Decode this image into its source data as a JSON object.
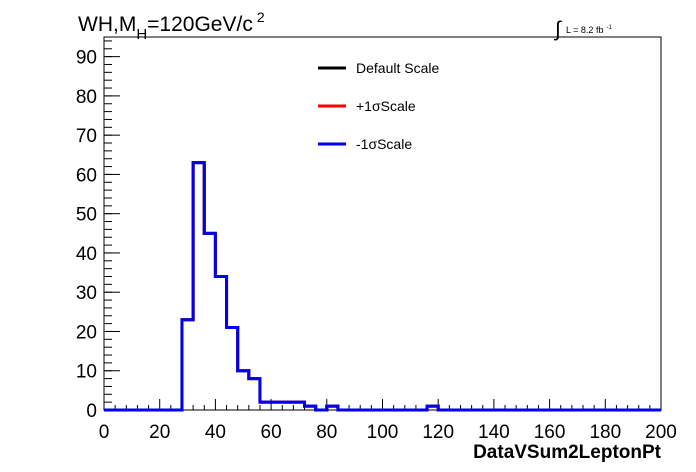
{
  "chart_data": {
    "type": "line",
    "title_main": "WH,M",
    "title_sub": "H",
    "title_rest": "=120GeV/c",
    "title_sup": "2",
    "lumi": {
      "integral": "∫",
      "text": "L = 8.2 fb",
      "sup": "-1"
    },
    "xlabel": "DataVSum2LeptonPt",
    "ylabel": "",
    "xlim": [
      0,
      200
    ],
    "ylim": [
      0,
      95
    ],
    "x_ticks": [
      0,
      20,
      40,
      60,
      80,
      100,
      120,
      140,
      160,
      180,
      200
    ],
    "y_ticks": [
      0,
      10,
      20,
      30,
      40,
      50,
      60,
      70,
      80,
      90
    ],
    "grid": false,
    "legend_position": "top-center",
    "bin_edges": [
      0,
      4,
      8,
      12,
      16,
      20,
      24,
      28,
      32,
      36,
      40,
      44,
      48,
      52,
      56,
      60,
      64,
      68,
      72,
      76,
      80,
      84,
      88,
      92,
      96,
      100,
      104,
      108,
      112,
      116,
      120,
      124,
      128,
      132,
      136,
      140,
      144,
      148,
      152,
      156,
      160,
      164,
      168,
      172,
      176,
      180,
      184,
      188,
      192,
      196,
      200
    ],
    "series": [
      {
        "name": "Default Scale",
        "color": "#000000",
        "values": [
          0,
          0,
          0,
          0,
          0,
          0,
          0,
          23,
          63,
          45,
          34,
          21,
          10,
          8,
          2,
          2,
          2,
          2,
          1,
          0,
          1,
          0,
          0,
          0,
          0,
          0,
          0,
          0,
          0,
          1,
          0,
          0,
          0,
          0,
          0,
          0,
          0,
          0,
          0,
          0,
          0,
          0,
          0,
          0,
          0,
          0,
          0,
          0,
          0,
          0
        ]
      },
      {
        "name": "+1σScale",
        "color": "#ff0000",
        "values": [
          0,
          0,
          0,
          0,
          0,
          0,
          0,
          23,
          63,
          45,
          34,
          21,
          10,
          8,
          2,
          2,
          2,
          2,
          1,
          0,
          1,
          0,
          0,
          0,
          0,
          0,
          0,
          0,
          0,
          1,
          0,
          0,
          0,
          0,
          0,
          0,
          0,
          0,
          0,
          0,
          0,
          0,
          0,
          0,
          0,
          0,
          0,
          0,
          0,
          0
        ]
      },
      {
        "name": "-1σScale",
        "color": "#0000ee",
        "values": [
          0,
          0,
          0,
          0,
          0,
          0,
          0,
          23,
          63,
          45,
          34,
          21,
          10,
          8,
          2,
          2,
          2,
          2,
          1,
          0,
          1,
          0,
          0,
          0,
          0,
          0,
          0,
          0,
          0,
          1,
          0,
          0,
          0,
          0,
          0,
          0,
          0,
          0,
          0,
          0,
          0,
          0,
          0,
          0,
          0,
          0,
          0,
          0,
          0,
          0
        ]
      }
    ]
  }
}
